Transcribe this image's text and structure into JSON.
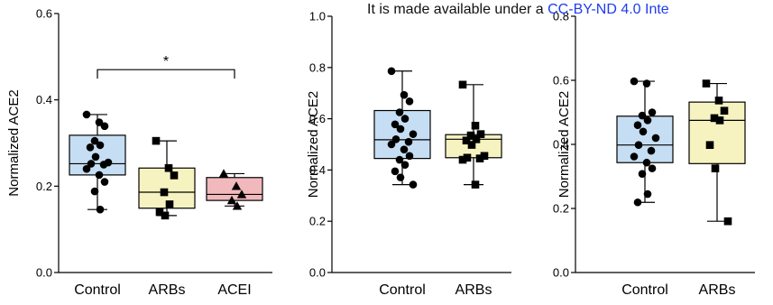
{
  "banner": {
    "text": "It is made available under a",
    "license": "CC-BY-ND 4.0 Inte"
  },
  "colors": {
    "Control": "#c6def3",
    "ARBs": "#f6f3c0",
    "ACEI": "#f2b9bd"
  },
  "chart_data": [
    {
      "type": "box",
      "ylabel": "Normalized ACE2",
      "ylim": [
        0.0,
        0.6
      ],
      "yticks": [
        "0.0",
        "0.2",
        "0.4",
        "0.6"
      ],
      "categories": [
        "Control",
        "ARBs",
        "ACEI"
      ],
      "significance": {
        "from": "Control",
        "to": "ACEI",
        "label": "*"
      },
      "groups": [
        {
          "name": "Control",
          "marker": "circle",
          "min": 0.146,
          "q1": 0.226,
          "median": 0.252,
          "q3": 0.318,
          "max": 0.366,
          "points": [
            0.366,
            0.348,
            0.339,
            0.305,
            0.295,
            0.29,
            0.268,
            0.255,
            0.252,
            0.25,
            0.24,
            0.226,
            0.21,
            0.188,
            0.146
          ]
        },
        {
          "name": "ARBs",
          "marker": "square",
          "min": 0.132,
          "q1": 0.149,
          "median": 0.186,
          "q3": 0.242,
          "max": 0.305,
          "points": [
            0.305,
            0.242,
            0.225,
            0.186,
            0.158,
            0.14,
            0.132
          ]
        },
        {
          "name": "ACEI",
          "marker": "triangle",
          "min": 0.154,
          "q1": 0.167,
          "median": 0.181,
          "q3": 0.22,
          "max": 0.229,
          "points": [
            0.229,
            0.2,
            0.181,
            0.167,
            0.154
          ]
        }
      ]
    },
    {
      "type": "box",
      "ylabel": "Normalized ACE2",
      "ylim": [
        0.0,
        1.0
      ],
      "yticks": [
        "0.0",
        "0.2",
        "0.4",
        "0.6",
        "0.8",
        "1.0"
      ],
      "categories": [
        "Control",
        "ARBs"
      ],
      "groups": [
        {
          "name": "Control",
          "marker": "circle",
          "min": 0.343,
          "q1": 0.445,
          "median": 0.518,
          "q3": 0.632,
          "max": 0.786,
          "points": [
            0.786,
            0.693,
            0.668,
            0.625,
            0.6,
            0.578,
            0.56,
            0.54,
            0.52,
            0.51,
            0.5,
            0.48,
            0.455,
            0.44,
            0.42,
            0.395,
            0.371,
            0.343
          ]
        },
        {
          "name": "ARBs",
          "marker": "square",
          "min": 0.343,
          "q1": 0.448,
          "median": 0.52,
          "q3": 0.538,
          "max": 0.733,
          "points": [
            0.733,
            0.573,
            0.54,
            0.535,
            0.52,
            0.515,
            0.498,
            0.455,
            0.448,
            0.445,
            0.44,
            0.343
          ]
        }
      ]
    },
    {
      "type": "box",
      "ylabel": "Normalized ACE2",
      "ylim": [
        0.0,
        0.8
      ],
      "yticks": [
        "0.0",
        "0.2",
        "0.4",
        "0.6",
        "0.8"
      ],
      "categories": [
        "Control",
        "ARBs"
      ],
      "groups": [
        {
          "name": "Control",
          "marker": "circle",
          "min": 0.219,
          "q1": 0.343,
          "median": 0.398,
          "q3": 0.488,
          "max": 0.597,
          "points": [
            0.597,
            0.59,
            0.5,
            0.49,
            0.475,
            0.46,
            0.44,
            0.42,
            0.398,
            0.38,
            0.362,
            0.343,
            0.325,
            0.308,
            0.245,
            0.219
          ]
        },
        {
          "name": "ARBs",
          "marker": "square",
          "min": 0.16,
          "q1": 0.34,
          "median": 0.475,
          "q3": 0.532,
          "max": 0.59,
          "points": [
            0.59,
            0.537,
            0.505,
            0.482,
            0.475,
            0.398,
            0.325,
            0.16
          ]
        }
      ]
    }
  ]
}
